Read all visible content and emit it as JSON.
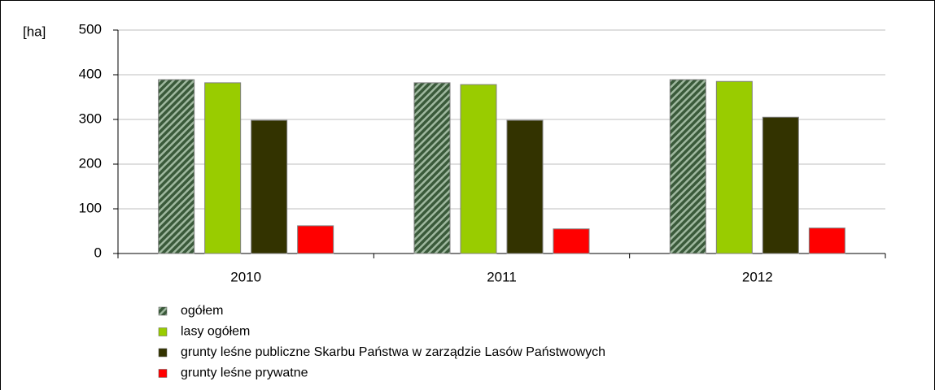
{
  "chart_data": {
    "type": "bar",
    "ylabel": "[ha]",
    "categories": [
      "2010",
      "2011",
      "2012"
    ],
    "series": [
      {
        "name": "ogółem",
        "color": "#3a5a3a",
        "hatch": true,
        "values": [
          389,
          382,
          389
        ]
      },
      {
        "name": "lasy ogółem",
        "color": "#99cc00",
        "values": [
          382,
          378,
          385
        ]
      },
      {
        "name": "grunty leśne publiczne Skarbu Państwa w zarządzie Lasów Państwowych",
        "color": "#333300",
        "values": [
          298,
          298,
          305
        ]
      },
      {
        "name": "grunty leśne prywatne",
        "color": "#ff0000",
        "values": [
          62,
          55,
          57
        ]
      }
    ],
    "ylim": [
      0,
      500
    ],
    "yticks": [
      0,
      100,
      200,
      300,
      400,
      500
    ],
    "grid": true
  }
}
